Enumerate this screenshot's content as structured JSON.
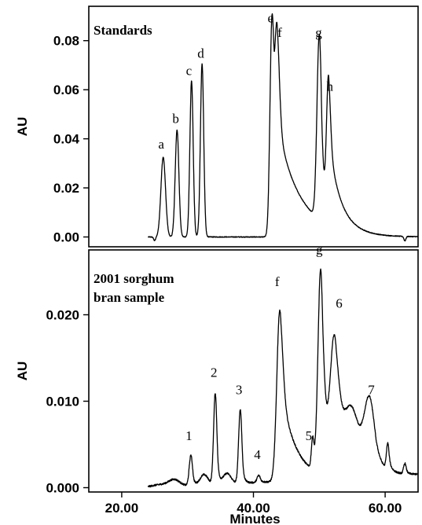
{
  "chart_data": [
    {
      "type": "line",
      "title": "Standards",
      "xlabel": "",
      "ylabel": "AU",
      "xlim": [
        15,
        65
      ],
      "ylim": [
        -0.004,
        0.094
      ],
      "yticks": [
        "0.00",
        "0.02",
        "0.04",
        "0.06",
        "0.08"
      ],
      "yticks_values": [
        0.0,
        0.02,
        0.04,
        0.06,
        0.08
      ],
      "baseline_start": 0.0,
      "baseline_end": 0.0,
      "baseline_noise": 0.0003,
      "dips": [
        {
          "x": 25.0,
          "y": -0.0015
        },
        {
          "x": 63.0,
          "y": -0.0018
        }
      ],
      "peaks": [
        {
          "label": "a",
          "x": 26.3,
          "height": 0.0325,
          "width": 0.35,
          "tail": 0.2
        },
        {
          "label": "b",
          "x": 28.4,
          "height": 0.0435,
          "width": 0.28,
          "tail": 0.15
        },
        {
          "label": "c",
          "x": 30.6,
          "height": 0.0635,
          "width": 0.25,
          "tail": 0.15
        },
        {
          "label": "d",
          "x": 32.2,
          "height": 0.0705,
          "width": 0.25,
          "tail": 0.15
        },
        {
          "label": "e",
          "x": 42.8,
          "height": 0.0845,
          "width": 0.3,
          "tail": 0.5
        },
        {
          "label": "f",
          "x": 43.6,
          "height": 0.0755,
          "width": 0.35,
          "tail": 3.5
        },
        {
          "label": "g",
          "x": 50.0,
          "height": 0.0755,
          "width": 0.35,
          "tail": 0.6
        },
        {
          "label": "h",
          "x": 51.4,
          "height": 0.0565,
          "width": 0.3,
          "tail": 1.8
        }
      ],
      "annotations": [
        {
          "text": "a",
          "x": 26.0,
          "y": 0.036
        },
        {
          "text": "b",
          "x": 28.2,
          "y": 0.0465
        },
        {
          "text": "c",
          "x": 30.2,
          "y": 0.066
        },
        {
          "text": "d",
          "x": 32.0,
          "y": 0.073
        },
        {
          "text": "e",
          "x": 42.6,
          "y": 0.0875
        },
        {
          "text": "f",
          "x": 44.0,
          "y": 0.0815
        },
        {
          "text": "g",
          "x": 49.9,
          "y": 0.0815
        },
        {
          "text": "h",
          "x": 51.6,
          "y": 0.0595
        }
      ]
    },
    {
      "type": "line",
      "title": "2001 sorghum bran sample",
      "title_lines": [
        "2001 sorghum",
        "bran sample"
      ],
      "xlabel": "Minutes",
      "ylabel": "AU",
      "xlim": [
        15,
        65
      ],
      "ylim": [
        -0.0005,
        0.0275
      ],
      "yticks": [
        "0.000",
        "0.010",
        "0.020"
      ],
      "yticks_values": [
        0.0,
        0.01,
        0.02
      ],
      "xticks": [
        "20.00",
        "40.00",
        "60.00"
      ],
      "xticks_values": [
        20,
        40,
        60
      ],
      "baseline_start": 0.0,
      "baseline_end": 0.0015,
      "baseline_noise": 0.0002,
      "peaks": [
        {
          "label": "",
          "x": 26.0,
          "height": 0.0003,
          "width": 1.5,
          "tail": 0.5
        },
        {
          "label": "",
          "x": 28.0,
          "height": 0.0007,
          "width": 0.8,
          "tail": 0.5
        },
        {
          "label": "1",
          "x": 30.5,
          "height": 0.0035,
          "width": 0.25,
          "tail": 0.3
        },
        {
          "label": "",
          "x": 32.5,
          "height": 0.0012,
          "width": 0.6,
          "tail": 0.5
        },
        {
          "label": "2",
          "x": 34.2,
          "height": 0.0105,
          "width": 0.25,
          "tail": 0.3
        },
        {
          "label": "",
          "x": 36.0,
          "height": 0.0012,
          "width": 0.6,
          "tail": 0.5
        },
        {
          "label": "3",
          "x": 38.0,
          "height": 0.0085,
          "width": 0.25,
          "tail": 0.3
        },
        {
          "label": "4",
          "x": 40.8,
          "height": 0.0008,
          "width": 0.25,
          "tail": 0.3
        },
        {
          "label": "f",
          "x": 44.0,
          "height": 0.0198,
          "width": 0.45,
          "tail": 2.2
        },
        {
          "label": "5",
          "x": 49.0,
          "height": 0.0035,
          "width": 0.2,
          "tail": 0.3
        },
        {
          "label": "g",
          "x": 50.2,
          "height": 0.0235,
          "width": 0.4,
          "tail": 1.0
        },
        {
          "label": "6",
          "x": 52.3,
          "height": 0.0145,
          "width": 0.6,
          "tail": 2.5
        },
        {
          "label": "",
          "x": 55.0,
          "height": 0.005,
          "width": 1.0,
          "tail": 1.0
        },
        {
          "label": "7",
          "x": 57.6,
          "height": 0.008,
          "width": 0.8,
          "tail": 1.2
        },
        {
          "label": "",
          "x": 60.4,
          "height": 0.003,
          "width": 0.2,
          "tail": 0.4
        },
        {
          "label": "",
          "x": 63.0,
          "height": 0.0012,
          "width": 0.2,
          "tail": 0.3
        }
      ],
      "annotations": [
        {
          "text": "1",
          "x": 30.2,
          "y": 0.0055
        },
        {
          "text": "2",
          "x": 34.0,
          "y": 0.0128
        },
        {
          "text": "3",
          "x": 37.8,
          "y": 0.0108
        },
        {
          "text": "4",
          "x": 40.6,
          "y": 0.0033
        },
        {
          "text": "f",
          "x": 43.6,
          "y": 0.0233
        },
        {
          "text": "5",
          "x": 48.4,
          "y": 0.0055
        },
        {
          "text": "g",
          "x": 50.0,
          "y": 0.027
        },
        {
          "text": "6",
          "x": 53.0,
          "y": 0.0208
        },
        {
          "text": "7",
          "x": 57.9,
          "y": 0.0108
        }
      ]
    }
  ]
}
